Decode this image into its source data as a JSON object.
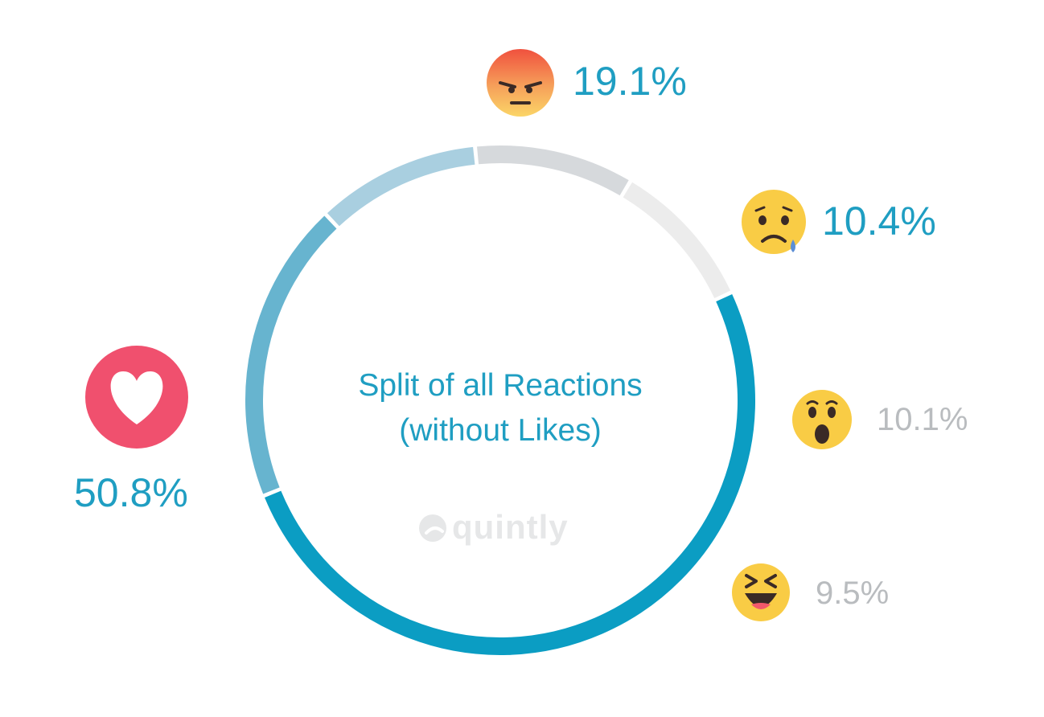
{
  "chart_data": {
    "type": "donut",
    "title": "Split of all Reactions",
    "subtitle": "(without Likes)",
    "slices": [
      {
        "icon": "love-reaction-icon",
        "value": 50.8,
        "label": "50.8%",
        "color": "#0b9dc3"
      },
      {
        "icon": "angry-reaction-icon",
        "value": 19.1,
        "label": "19.1%",
        "color": "#67b4cf"
      },
      {
        "icon": "sad-reaction-icon",
        "value": 10.4,
        "label": "10.4%",
        "color": "#a9cfe0"
      },
      {
        "icon": "wow-reaction-icon",
        "value": 10.1,
        "label": "10.1%",
        "color": "#d6d9dc"
      },
      {
        "icon": "haha-reaction-icon",
        "value": 9.5,
        "label": "9.5%",
        "color": "#ececec"
      }
    ]
  },
  "brand": {
    "name": "quintly",
    "icon": "quintly-logo-icon"
  }
}
